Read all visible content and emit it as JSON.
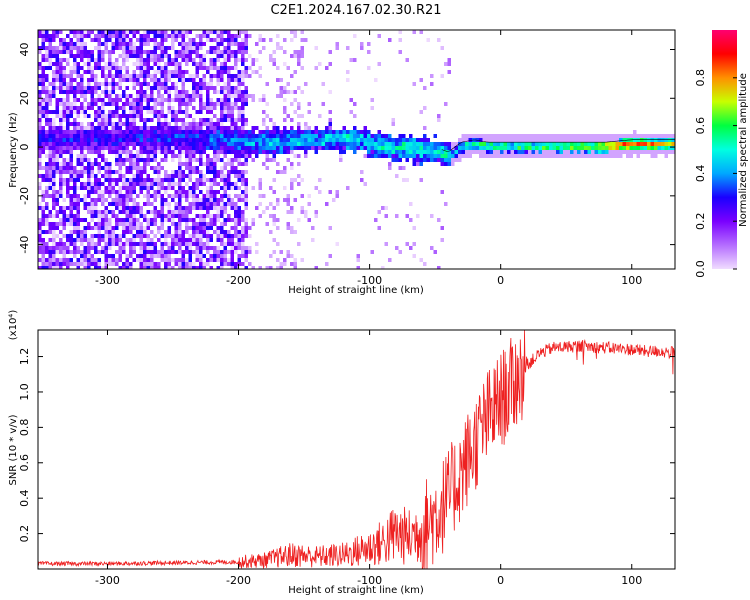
{
  "title": "C2E1.2024.167.02.30.R21",
  "chart_data": [
    {
      "type": "heatmap",
      "xlabel": "Height of straight line (km)",
      "ylabel": "Frequency (Hz)",
      "xlim": [
        -353,
        133
      ],
      "ylim": [
        -50,
        48
      ],
      "xticks": [
        -300,
        -200,
        -100,
        0,
        100
      ],
      "xtick_labels": [
        "-300",
        "-200",
        "-100",
        "0",
        "100"
      ],
      "yticks": [
        -40,
        -20,
        0,
        20,
        40
      ],
      "ytick_labels": [
        "-40",
        "-20",
        "0",
        "20",
        "40"
      ],
      "colorbar": {
        "label": "Normalized spectral amplitude",
        "range": [
          0.0,
          1.0
        ],
        "ticks": [
          0.0,
          0.2,
          0.4,
          0.6,
          0.8
        ],
        "tick_labels": [
          "0.0",
          "0.2",
          "0.4",
          "0.6",
          "0.8"
        ],
        "colormap": [
          "#f0dcff",
          "#b46cff",
          "#7a00ff",
          "#1a00ff",
          "#00a8ff",
          "#00ffe0",
          "#00ff40",
          "#c8ff00",
          "#ff9000",
          "#ff0000",
          "#ff0070"
        ]
      },
      "ridge": {
        "x": [
          -290,
          -260,
          -230,
          -200,
          -170,
          -140,
          -110,
          -90,
          -70,
          -50,
          -40,
          -30,
          -20,
          -10,
          0,
          20,
          40,
          60,
          80,
          100,
          120,
          133
        ],
        "frequency": [
          4,
          5,
          4,
          3,
          3,
          4,
          4,
          1,
          0,
          -1,
          -3,
          1,
          2,
          1,
          1,
          1,
          1,
          1,
          1,
          2,
          2,
          2
        ],
        "amplitude": [
          0.3,
          0.3,
          0.35,
          0.4,
          0.45,
          0.45,
          0.5,
          0.5,
          0.55,
          0.5,
          0.5,
          0.55,
          0.6,
          0.65,
          0.6,
          0.6,
          0.65,
          0.7,
          0.85,
          0.9,
          0.8,
          0.75
        ]
      },
      "grid": false
    },
    {
      "type": "line",
      "xlabel": "Height of straight line (km)",
      "ylabel": "SNR (10 * v/v)",
      "yscale_label": "(x10⁴)",
      "xlim": [
        -353,
        133
      ],
      "ylim": [
        0,
        13500
      ],
      "xticks": [
        -300,
        -200,
        -100,
        0,
        100
      ],
      "xtick_labels": [
        "-300",
        "-200",
        "-100",
        "0",
        "100"
      ],
      "yticks": [
        2000,
        4000,
        6000,
        8000,
        10000,
        12000
      ],
      "ytick_labels": [
        "0.2",
        "0.4",
        "0.6",
        "0.8",
        "1.0",
        "1.2"
      ],
      "color": "#ee2020",
      "series": [
        {
          "x": [
            -353,
            -300,
            -250,
            -200,
            -180,
            -160,
            -140,
            -120,
            -100,
            -90,
            -80,
            -70,
            -60,
            -50,
            -40,
            -30,
            -20,
            -10,
            0,
            10,
            20,
            30,
            40,
            60,
            80,
            100,
            110,
            120,
            133
          ],
          "values": [
            300,
            300,
            350,
            400,
            500,
            800,
            700,
            800,
            1200,
            1500,
            2000,
            1800,
            2200,
            3000,
            4000,
            5500,
            7000,
            8500,
            9500,
            10500,
            11500,
            12200,
            12500,
            12600,
            12500,
            12400,
            12300,
            12300,
            12200
          ]
        }
      ],
      "grid": false
    }
  ]
}
